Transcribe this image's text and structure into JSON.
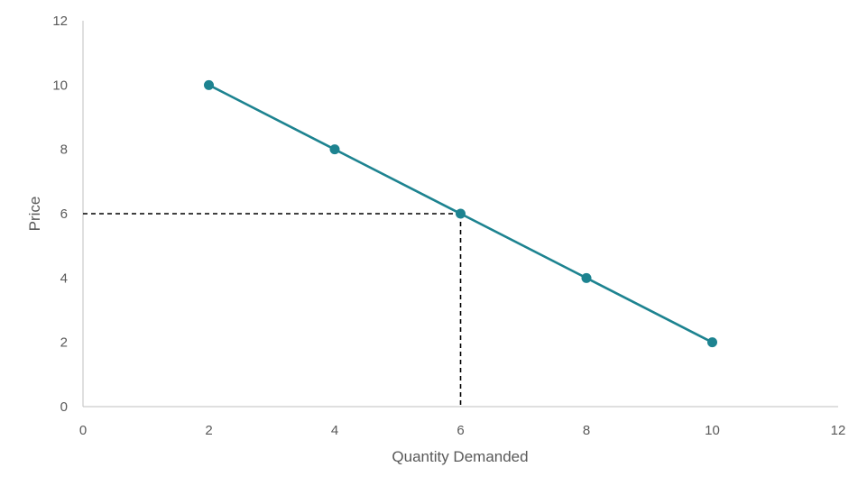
{
  "chart_data": {
    "type": "line",
    "title": "",
    "xlabel": "Quantity Demanded",
    "ylabel": "Price",
    "xlim": [
      0,
      12
    ],
    "ylim": [
      0,
      12
    ],
    "xticks": [
      0,
      2,
      4,
      6,
      8,
      10,
      12
    ],
    "yticks": [
      0,
      2,
      4,
      6,
      8,
      10,
      12
    ],
    "xtick_labels": [
      "0",
      "2",
      "4",
      "6",
      "8",
      "10",
      "12"
    ],
    "ytick_labels": [
      "0",
      "2",
      "4",
      "6",
      "8",
      "10",
      "12"
    ],
    "grid": false,
    "legend": "none",
    "series": [
      {
        "x": [
          2,
          4,
          6,
          8,
          10
        ],
        "y": [
          10,
          8,
          6,
          4,
          2
        ],
        "markers": true,
        "color": "#1d8390"
      }
    ],
    "reference_lines": [
      {
        "style": "dashed",
        "from": [
          0,
          6
        ],
        "to": [
          6,
          6
        ],
        "color": "#000000"
      },
      {
        "style": "dashed",
        "from": [
          6,
          6
        ],
        "to": [
          6,
          0
        ],
        "color": "#000000"
      }
    ],
    "axis_color": "#bfbfbf",
    "text_color": "#595959"
  }
}
